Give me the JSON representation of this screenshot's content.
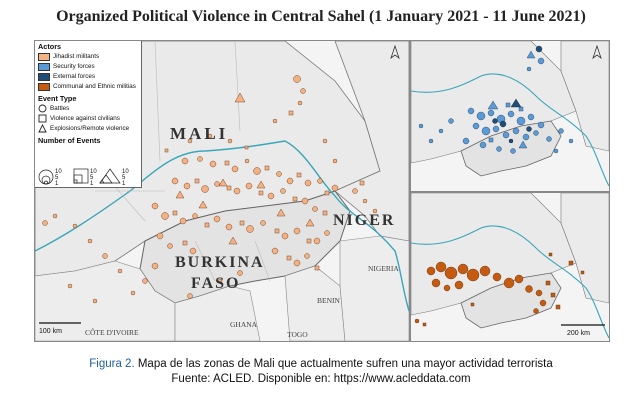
{
  "title": "Organized Political Violence in Central Sahel (1 January 2021 - 11 June 2021)",
  "legend": {
    "actors_heading": "Actors",
    "actors": [
      {
        "label": "Jihadist militants",
        "color": "#f4b183"
      },
      {
        "label": "Security forces",
        "color": "#5b9bd5"
      },
      {
        "label": "External forces",
        "color": "#1f4e79"
      },
      {
        "label": "Communal and Ethnic militias",
        "color": "#c55a11"
      }
    ],
    "event_type_heading": "Event Type",
    "event_types": [
      {
        "label": "Battles",
        "shape": "circle"
      },
      {
        "label": "Violence against civilians",
        "shape": "square"
      },
      {
        "label": "Explosions/Remote violence",
        "shape": "triangle"
      }
    ],
    "events_heading": "Number of Events",
    "size_values": [
      "10",
      "5",
      "1"
    ]
  },
  "map_labels": {
    "mali": "MALI",
    "niger": "NIGER",
    "burkina": "BURKINA",
    "faso": "FASO",
    "nigeria": "NIGERIA",
    "benin": "BENIN",
    "ghana": "GHANA",
    "togo": "TOGO",
    "cote": "CÔTE D'IVOIRE"
  },
  "scale_main": "100 km",
  "scale_inset": "200 km",
  "caption": {
    "figure_label": "Figura 2.",
    "text": " Mapa de las zonas de Mali que actualmente sufren una mayor actividad terrorista",
    "source": "Fuente: ACLED. Disponible en: https://www.acleddata.com"
  },
  "colors": {
    "land": "#f2f2f2",
    "region_land": "#e0e0e0",
    "border": "#777777",
    "river": "#3aa6b9",
    "jihadist": "#f4b183",
    "security": "#5b9bd5",
    "external": "#1f4e79",
    "militia": "#c55a11"
  }
}
